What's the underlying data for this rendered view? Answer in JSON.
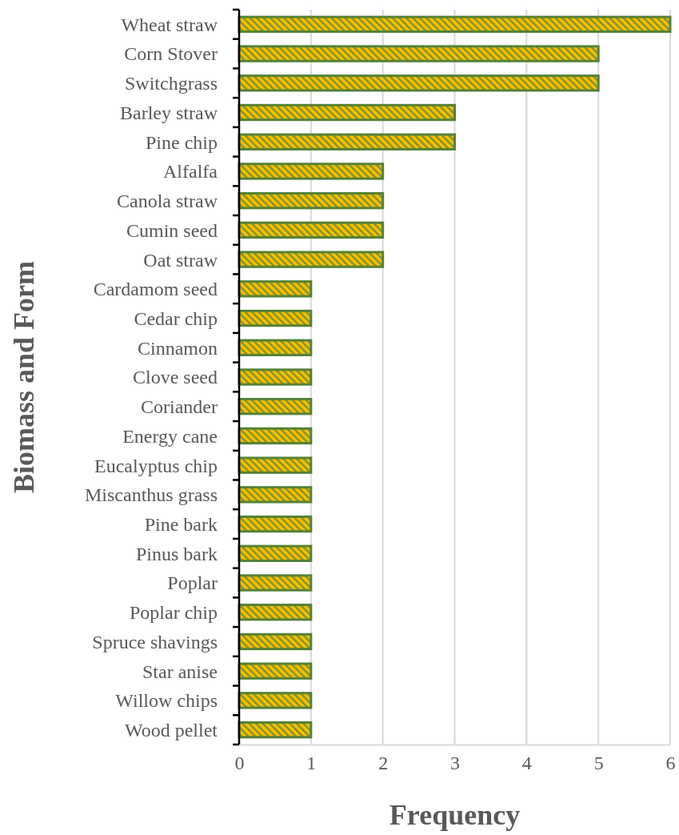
{
  "chart_data": {
    "type": "bar",
    "orientation": "horizontal",
    "xlabel": "Frequency",
    "ylabel": "Biomass and Form",
    "categories": [
      "Wheat straw",
      "Corn Stover",
      "Switchgrass",
      "Barley straw",
      "Pine chip",
      "Alfalfa",
      "Canola straw",
      "Cumin seed",
      "Oat straw",
      "Cardamom seed",
      "Cedar chip",
      "Cinnamon",
      "Clove seed",
      "Coriander",
      "Energy cane",
      "Eucalyptus chip",
      "Miscanthus grass",
      "Pine bark",
      "Pinus bark",
      "Poplar",
      "Poplar chip",
      "Spruce shavings",
      "Star anise",
      "Willow chips",
      "Wood pellet"
    ],
    "values": [
      6,
      5,
      5,
      3,
      3,
      2,
      2,
      2,
      2,
      1,
      1,
      1,
      1,
      1,
      1,
      1,
      1,
      1,
      1,
      1,
      1,
      1,
      1,
      1,
      1
    ],
    "color": "#548235",
    "xlim": [
      0,
      6
    ],
    "xticks": [
      0,
      1,
      2,
      3,
      4,
      5,
      6
    ],
    "grid": "x"
  }
}
